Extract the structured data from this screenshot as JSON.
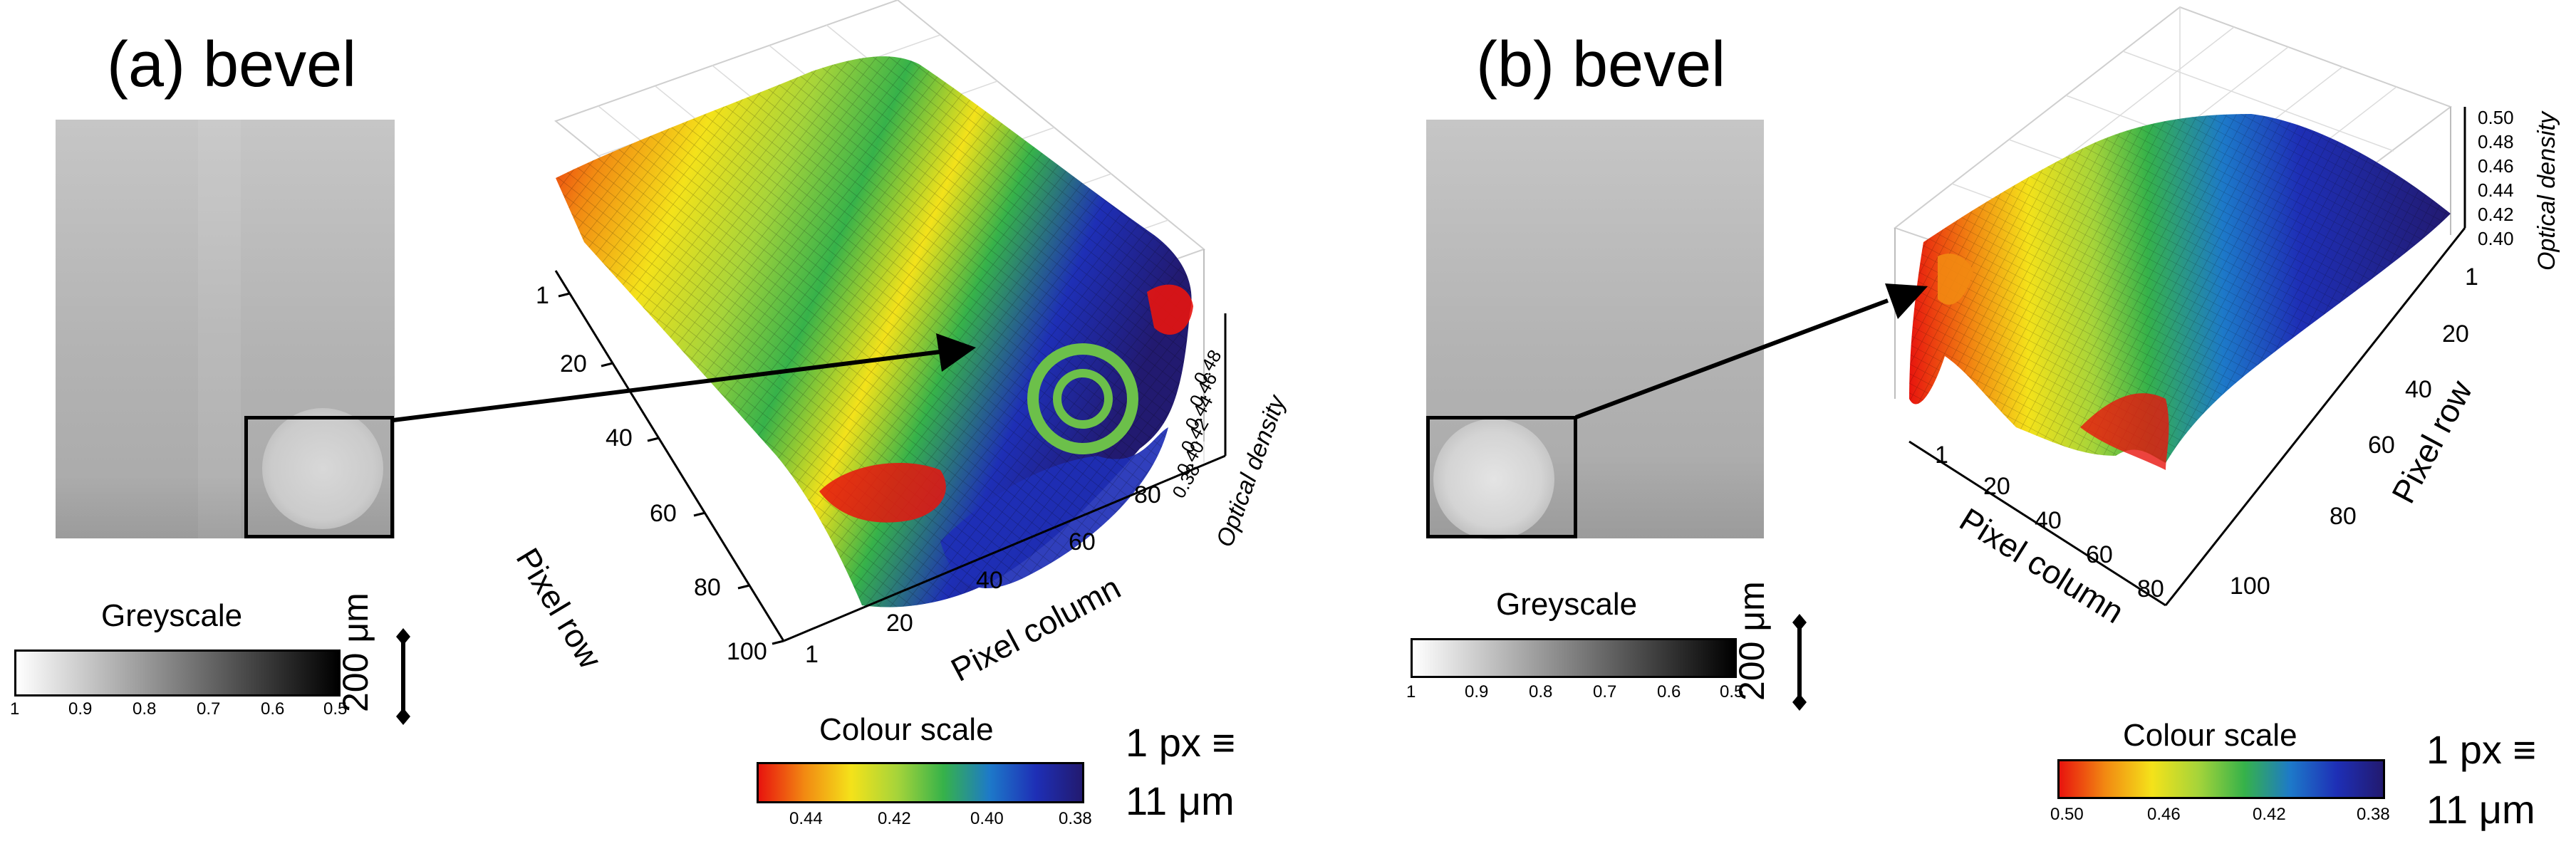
{
  "panel_a": {
    "title": "(a) bevel",
    "greyscale": {
      "title": "Greyscale",
      "ticks": [
        "1",
        "0.9",
        "0.8",
        "0.7",
        "0.6",
        "0.5"
      ]
    },
    "scalebar": "200 μm",
    "colour_scale": {
      "title": "Colour scale",
      "ticks": [
        "0.44",
        "0.42",
        "0.40",
        "0.38"
      ]
    },
    "px_eq_line1": "1 px ≡",
    "px_eq_line2": "11 μm",
    "plot": {
      "row_label": "Pixel row",
      "col_label": "Pixel column",
      "od_label": "Optical density",
      "row_ticks": [
        "1",
        "20",
        "40",
        "60",
        "80",
        "100"
      ],
      "col_ticks": [
        "1",
        "20",
        "40",
        "60",
        "80"
      ],
      "od_ticks": [
        "0.38",
        "0.40",
        "0.42",
        "0.44",
        "0.46",
        "0.48"
      ]
    }
  },
  "panel_b": {
    "title": "(b) bevel",
    "greyscale": {
      "title": "Greyscale",
      "ticks": [
        "1",
        "0.9",
        "0.8",
        "0.7",
        "0.6",
        "0.5"
      ]
    },
    "scalebar": "200 μm",
    "colour_scale": {
      "title": "Colour scale",
      "ticks": [
        "0.50",
        "0.46",
        "0.42",
        "0.38"
      ]
    },
    "px_eq_line1": "1 px ≡",
    "px_eq_line2": "11 μm",
    "plot": {
      "row_label": "Pixel row",
      "col_label": "Pixel column",
      "od_label": "Optical density",
      "row_ticks": [
        "1",
        "20",
        "40",
        "60",
        "80",
        "100"
      ],
      "col_ticks": [
        "1",
        "20",
        "40",
        "60",
        "80"
      ],
      "od_ticks": [
        "0.40",
        "0.42",
        "0.44",
        "0.46",
        "0.48",
        "0.50"
      ]
    }
  },
  "colors": {
    "colour_scale": [
      "#e8140e",
      "#f28a12",
      "#f4e21a",
      "#a6d43a",
      "#36b24a",
      "#1d79c9",
      "#1e2fb6",
      "#221a70"
    ],
    "greyscale": [
      "#ffffff",
      "#000000"
    ]
  }
}
